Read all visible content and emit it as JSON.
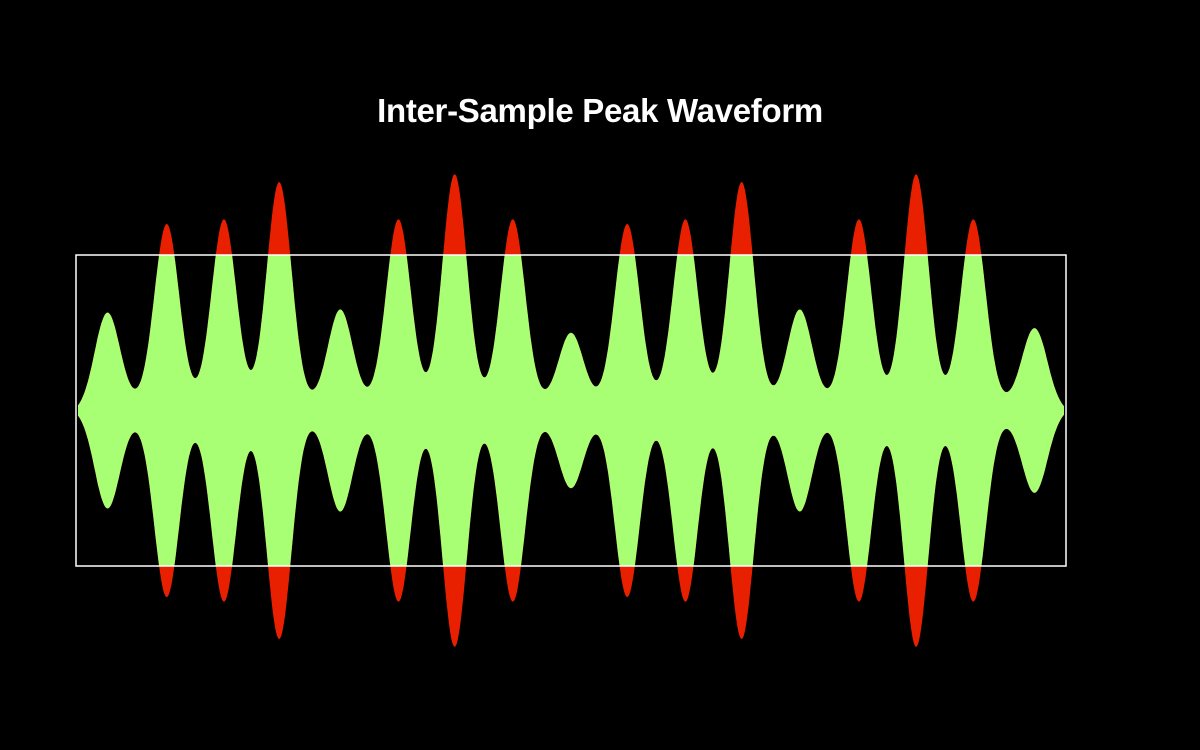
{
  "title": "Inter-Sample Peak Waveform",
  "colors": {
    "background": "#000000",
    "waveform": "#a8ff73",
    "clipped": "#e82000",
    "limit_box": "#ffffff",
    "title": "#ffffff"
  },
  "waveform": {
    "ceiling": 1.0,
    "peaks": [
      {
        "pos": 0.03,
        "amp": 0.58
      },
      {
        "pos": 0.09,
        "amp": 1.15
      },
      {
        "pos": 0.148,
        "amp": 1.18
      },
      {
        "pos": 0.204,
        "amp": 1.42
      },
      {
        "pos": 0.266,
        "amp": 0.6
      },
      {
        "pos": 0.325,
        "amp": 1.18
      },
      {
        "pos": 0.382,
        "amp": 1.47
      },
      {
        "pos": 0.441,
        "amp": 1.18
      },
      {
        "pos": 0.5,
        "amp": 0.45
      },
      {
        "pos": 0.557,
        "amp": 1.15
      },
      {
        "pos": 0.616,
        "amp": 1.18
      },
      {
        "pos": 0.673,
        "amp": 1.42
      },
      {
        "pos": 0.732,
        "amp": 0.6
      },
      {
        "pos": 0.792,
        "amp": 1.18
      },
      {
        "pos": 0.85,
        "amp": 1.47
      },
      {
        "pos": 0.908,
        "amp": 1.18
      },
      {
        "pos": 0.97,
        "amp": 0.48
      }
    ]
  }
}
